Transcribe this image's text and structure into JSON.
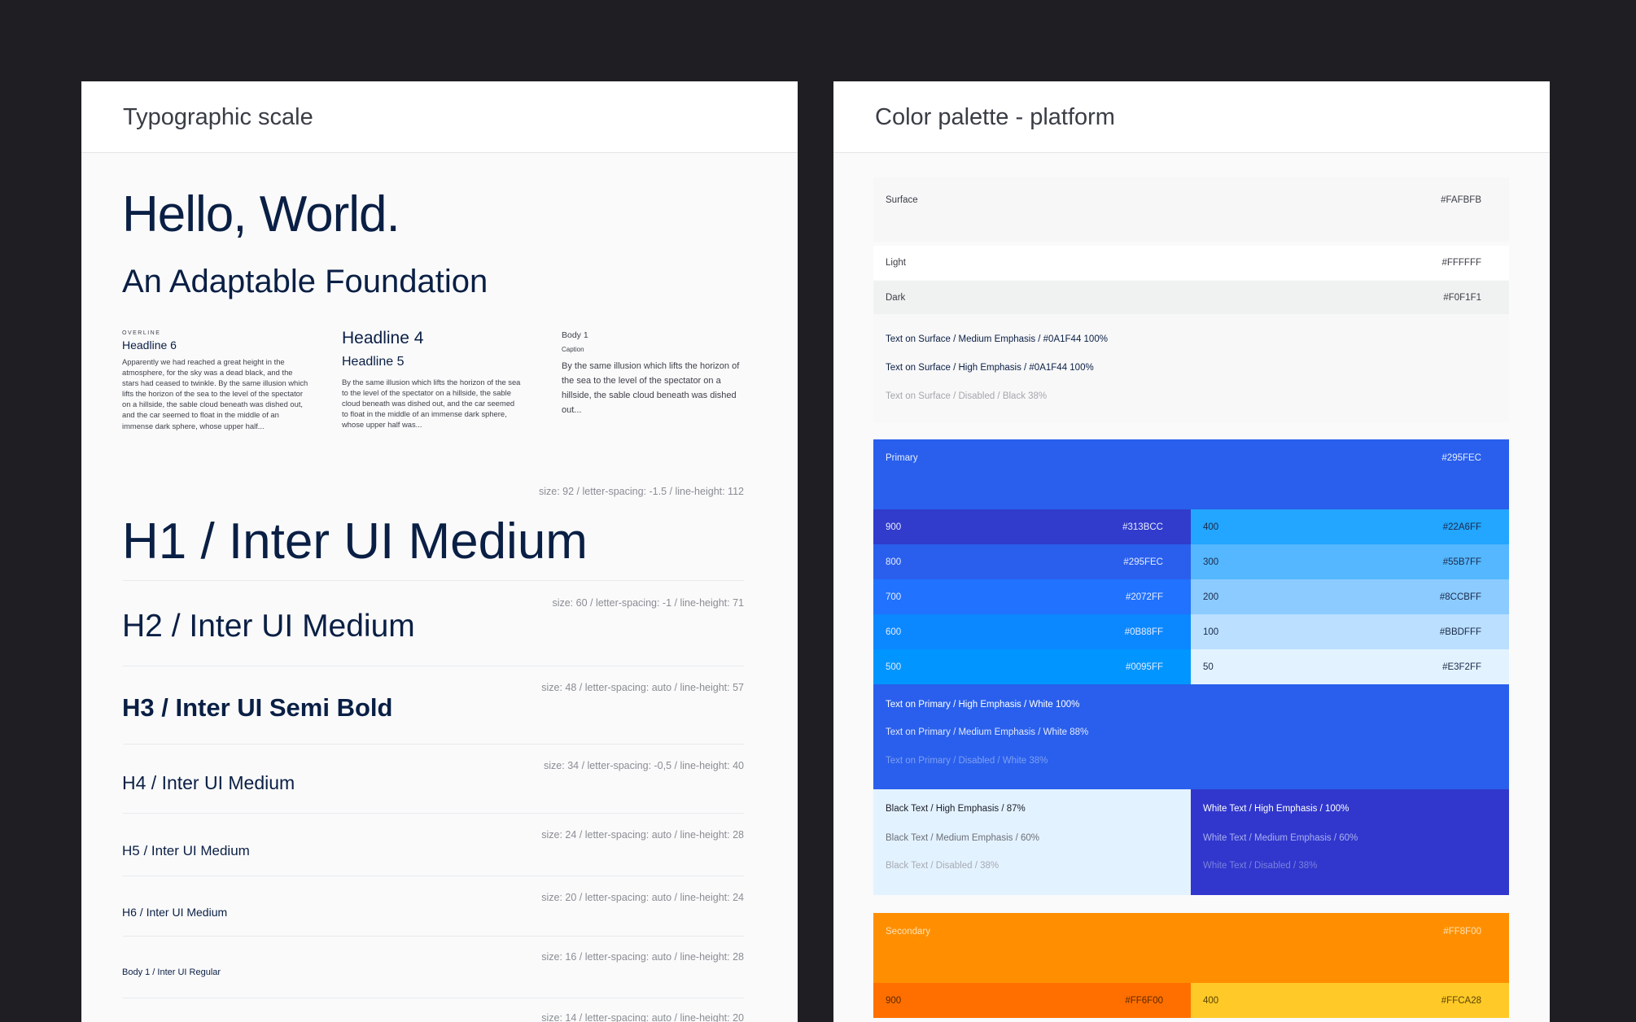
{
  "typography": {
    "title": "Typographic scale",
    "hero": "Hello, World.",
    "subhero": "An Adaptable Foundation",
    "col1": {
      "overline": "OVERLINE",
      "headline": "Headline 6",
      "text": "Apparently we had reached a great height in the atmosphere, for the sky was a dead black, and the stars had ceased to twinkle. By the same illusion which lifts the horizon of the sea to the level of the spectator on a hillside, the sable cloud beneath was dished out, and the car seemed to float in the middle of an immense dark sphere, whose upper half..."
    },
    "col2": {
      "headline4": "Headline 4",
      "headline5": "Headline 5",
      "text": "By the same illusion which lifts the horizon of the sea to the level of the spectator on a hillside, the sable cloud beneath was dished out, and the car seemed to float in the middle of an immense dark sphere, whose upper half was..."
    },
    "col3": {
      "body": "Body 1",
      "caption": "Caption",
      "text": "By the same illusion which lifts the horizon of the sea to the level of the spectator on a hillside, the sable cloud beneath was dished out..."
    },
    "styles": [
      {
        "name": "H1 / Inter UI Medium",
        "spec": "size: 92 / letter-spacing: -1.5 / line-height: 112"
      },
      {
        "name": "H2 / Inter UI Medium",
        "spec": "size: 60 / letter-spacing: -1 / line-height: 71"
      },
      {
        "name": "H3 / Inter UI Semi Bold",
        "spec": "size: 48 / letter-spacing: auto / line-height: 57"
      },
      {
        "name": "H4 / Inter UI Medium",
        "spec": "size: 34 / letter-spacing: -0,5 / line-height: 40"
      },
      {
        "name": "H5 / Inter UI Medium",
        "spec": "size: 24 / letter-spacing: auto / line-height: 28"
      },
      {
        "name": "H6 / Inter UI Medium",
        "spec": "size: 20 / letter-spacing: auto / line-height: 24"
      },
      {
        "name": "Body 1 / Inter UI Regular",
        "spec": "size: 16 / letter-spacing: auto / line-height: 28"
      },
      {
        "name": "",
        "spec": "size: 14 / letter-spacing: auto / line-height: 20"
      }
    ]
  },
  "palette": {
    "title": "Color palette - platform",
    "surface": {
      "label": "Surface",
      "hex": "#FAFBFB"
    },
    "light": {
      "label": "Light",
      "hex": "#FFFFFF"
    },
    "dark": {
      "label": "Dark",
      "hex": "#F0F1F1"
    },
    "surface_text": [
      "Text on Surface / Medium Emphasis / #0A1F44 100%",
      "Text on Surface / High Emphasis / #0A1F44 100%",
      "Text on Surface / Disabled / Black 38%"
    ],
    "primary": {
      "label": "Primary",
      "hex": "#295FEC"
    },
    "primary_dark": [
      {
        "label": "900",
        "hex": "#313BCC"
      },
      {
        "label": "800",
        "hex": "#295FEC"
      },
      {
        "label": "700",
        "hex": "#2072FF"
      },
      {
        "label": "600",
        "hex": "#0B88FF"
      },
      {
        "label": "500",
        "hex": "#0095FF"
      }
    ],
    "primary_light": [
      {
        "label": "400",
        "hex": "#22A6FF"
      },
      {
        "label": "300",
        "hex": "#55B7FF"
      },
      {
        "label": "200",
        "hex": "#8CCBFF"
      },
      {
        "label": "100",
        "hex": "#BBDFFF"
      },
      {
        "label": "50",
        "hex": "#E3F2FF"
      }
    ],
    "primary_text": [
      "Text on Primary / High Emphasis / White 100%",
      "Text on Primary / Medium Emphasis / White 88%",
      "Text on Primary / Disabled / White 38%"
    ],
    "black_text": [
      "Black Text / High Emphasis / 87%",
      "Black Text / Medium Emphasis / 60%",
      "Black Text /  Disabled / 38%"
    ],
    "white_text": [
      "White Text / High Emphasis / 100%",
      "White Text / Medium Emphasis / 60%",
      "White Text / Disabled / 38%"
    ],
    "secondary": {
      "label": "Secondary",
      "hex": "#FF8F00"
    },
    "secondary_shades": [
      {
        "label": "900",
        "hex": "#FF6F00"
      },
      {
        "label": "400",
        "hex": "#FFCA28"
      }
    ]
  }
}
